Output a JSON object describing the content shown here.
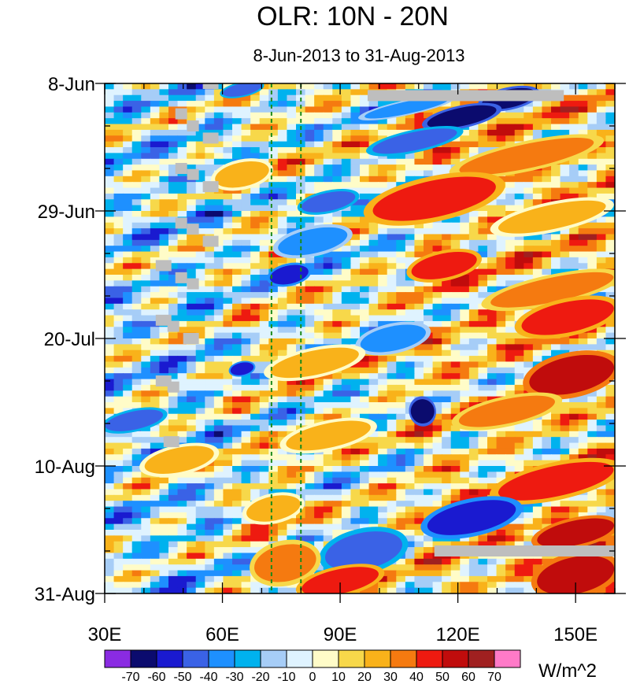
{
  "chart_data": {
    "type": "heatmap",
    "title": "OLR: 10N - 20N",
    "subtitle": "8-Jun-2013 to 31-Aug-2013",
    "x_axis": {
      "range": [
        30,
        160
      ],
      "tick_values": [
        30,
        60,
        90,
        120,
        150
      ],
      "tick_labels": [
        "30E",
        "60E",
        "90E",
        "120E",
        "150E"
      ],
      "minor_tick_step": 10
    },
    "y_axis": {
      "range_days": [
        0,
        84
      ],
      "tick_days": [
        0,
        21,
        42,
        63,
        84
      ],
      "tick_labels": [
        "8-Jun",
        "29-Jun",
        "20-Jul",
        "10-Aug",
        "31-Aug"
      ],
      "minor_tick_step_days": 7,
      "direction": "top-to-bottom"
    },
    "reference_lines": [
      {
        "x": 72.5,
        "color": "#1a8a1a",
        "style": "dashed"
      },
      {
        "x": 80,
        "color": "#1a8a1a",
        "style": "dashed"
      }
    ],
    "colorbar": {
      "unit": "W/m^2",
      "labels": [
        "-70",
        "-60",
        "-50",
        "-40",
        "-30",
        "-20",
        "-10",
        "0",
        "10",
        "20",
        "30",
        "40",
        "50",
        "60",
        "70"
      ],
      "colors": [
        "#8a2be2",
        "#0b0b6e",
        "#1a1ad0",
        "#3a62e6",
        "#1e90ff",
        "#00b2ee",
        "#a6cdf7",
        "#dff3ff",
        "#fffcc8",
        "#f7d84a",
        "#f9b21a",
        "#f57a10",
        "#ee1a10",
        "#c00c0c",
        "#a02020",
        "#ff7ac8"
      ]
    },
    "missing_segments": [
      {
        "x0": 97,
        "x1": 147,
        "day": 2
      },
      {
        "x0": 114,
        "x1": 160,
        "day": 77
      },
      {
        "x0": 55,
        "x1": 59,
        "day": 0
      },
      {
        "x0": 48,
        "x1": 51,
        "day": 5
      },
      {
        "x0": 51,
        "x1": 54,
        "day": 7
      },
      {
        "x0": 55,
        "x1": 59,
        "day": 9
      },
      {
        "x0": 48,
        "x1": 51,
        "day": 14
      },
      {
        "x0": 51,
        "x1": 54,
        "day": 15
      },
      {
        "x0": 55,
        "x1": 59,
        "day": 17
      },
      {
        "x0": 48,
        "x1": 51,
        "day": 23
      },
      {
        "x0": 51,
        "x1": 54,
        "day": 24
      },
      {
        "x0": 55,
        "x1": 59,
        "day": 26
      },
      {
        "x0": 43,
        "x1": 47,
        "day": 30
      },
      {
        "x0": 48,
        "x1": 51,
        "day": 32
      },
      {
        "x0": 51,
        "x1": 54,
        "day": 33
      },
      {
        "x0": 43,
        "x1": 47,
        "day": 39
      },
      {
        "x0": 46,
        "x1": 49,
        "day": 40
      },
      {
        "x0": 50,
        "x1": 54,
        "day": 42
      },
      {
        "x0": 43,
        "x1": 47,
        "day": 49
      },
      {
        "x0": 46,
        "x1": 49,
        "day": 50
      },
      {
        "x0": 45,
        "x1": 49,
        "day": 59
      }
    ],
    "bands": [
      {
        "day0": 0,
        "day1": 2,
        "x0": 60,
        "x1": 70,
        "value": -50
      },
      {
        "day0": 1,
        "day1": 4,
        "x0": 126,
        "x1": 140,
        "value": -65
      },
      {
        "day0": 3,
        "day1": 5,
        "x0": 96,
        "x1": 118,
        "value": -40
      },
      {
        "day0": 4,
        "day1": 7,
        "x0": 112,
        "x1": 130,
        "value": -70
      },
      {
        "day0": 8,
        "day1": 11,
        "x0": 98,
        "x1": 120,
        "value": -50
      },
      {
        "day0": 10,
        "day1": 14,
        "x0": 120,
        "x1": 155,
        "value": 30
      },
      {
        "day0": 13,
        "day1": 17,
        "x0": 58,
        "x1": 72,
        "value": 25
      },
      {
        "day0": 16,
        "day1": 22,
        "x0": 98,
        "x1": 130,
        "value": 45
      },
      {
        "day0": 18,
        "day1": 21,
        "x0": 80,
        "x1": 94,
        "value": -45
      },
      {
        "day0": 20,
        "day1": 24,
        "x0": 130,
        "x1": 158,
        "value": 25
      },
      {
        "day0": 24,
        "day1": 28,
        "x0": 74,
        "x1": 92,
        "value": -35
      },
      {
        "day0": 28,
        "day1": 32,
        "x0": 108,
        "x1": 125,
        "value": 45
      },
      {
        "day0": 30,
        "day1": 33,
        "x0": 72,
        "x1": 82,
        "value": -55
      },
      {
        "day0": 32,
        "day1": 36,
        "x0": 128,
        "x1": 160,
        "value": 30
      },
      {
        "day0": 36,
        "day1": 41,
        "x0": 136,
        "x1": 160,
        "value": 45
      },
      {
        "day0": 40,
        "day1": 44,
        "x0": 95,
        "x1": 112,
        "value": -40
      },
      {
        "day0": 44,
        "day1": 48,
        "x0": 72,
        "x1": 95,
        "value": 20
      },
      {
        "day0": 45,
        "day1": 51,
        "x0": 138,
        "x1": 160,
        "value": 55
      },
      {
        "day0": 46,
        "day1": 48,
        "x0": 62,
        "x1": 68,
        "value": -55
      },
      {
        "day0": 52,
        "day1": 56,
        "x0": 108,
        "x1": 114,
        "value": -70
      },
      {
        "day0": 52,
        "day1": 56,
        "x0": 120,
        "x1": 145,
        "value": 35
      },
      {
        "day0": 54,
        "day1": 57,
        "x0": 30,
        "x1": 45,
        "value": -45
      },
      {
        "day0": 56,
        "day1": 60,
        "x0": 76,
        "x1": 98,
        "value": 25
      },
      {
        "day0": 60,
        "day1": 64,
        "x0": 40,
        "x1": 58,
        "value": 20
      },
      {
        "day0": 63,
        "day1": 68,
        "x0": 130,
        "x1": 160,
        "value": 45
      },
      {
        "day0": 68,
        "day1": 72,
        "x0": 66,
        "x1": 80,
        "value": 25
      },
      {
        "day0": 69,
        "day1": 74,
        "x0": 112,
        "x1": 135,
        "value": -55
      },
      {
        "day0": 72,
        "day1": 76,
        "x0": 140,
        "x1": 160,
        "value": 50
      },
      {
        "day0": 74,
        "day1": 80,
        "x0": 86,
        "x1": 106,
        "value": -50
      },
      {
        "day0": 76,
        "day1": 82,
        "x0": 68,
        "x1": 84,
        "value": 35
      },
      {
        "day0": 78,
        "day1": 84,
        "x0": 140,
        "x1": 160,
        "value": 50
      },
      {
        "day0": 80,
        "day1": 84,
        "x0": 80,
        "x1": 100,
        "value": 45
      }
    ]
  }
}
